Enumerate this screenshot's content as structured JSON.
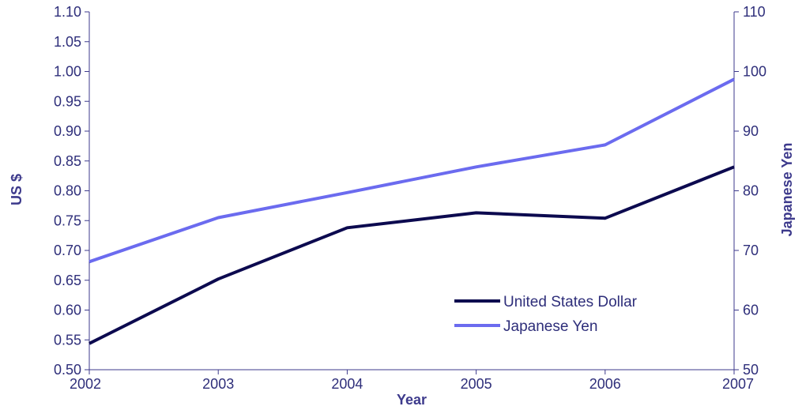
{
  "chart_data": {
    "type": "line",
    "title": "",
    "xlabel": "Year",
    "ylabel": "US $",
    "y2label": "Japanese Yen",
    "x": [
      "2002",
      "2003",
      "2004",
      "2005",
      "2006",
      "2007"
    ],
    "ylim": [
      0.5,
      1.1
    ],
    "y2lim": [
      50,
      110
    ],
    "yticks": [
      "0.50",
      "0.55",
      "0.60",
      "0.65",
      "0.70",
      "0.75",
      "0.80",
      "0.85",
      "0.90",
      "0.95",
      "1.00",
      "1.05",
      "1.10"
    ],
    "y2ticks": [
      "50",
      "60",
      "70",
      "80",
      "90",
      "100",
      "110"
    ],
    "grid": false,
    "legend_position": "bottom-right",
    "series": [
      {
        "name": "United States Dollar",
        "axis": "left",
        "color": "#0c0a4f",
        "values": [
          0.544,
          0.652,
          0.738,
          0.763,
          0.754,
          0.84
        ]
      },
      {
        "name": "Japanese Yen",
        "axis": "right",
        "color": "#6b6bef",
        "values": [
          68.1,
          75.5,
          79.7,
          84.0,
          87.7,
          98.7
        ]
      }
    ]
  }
}
